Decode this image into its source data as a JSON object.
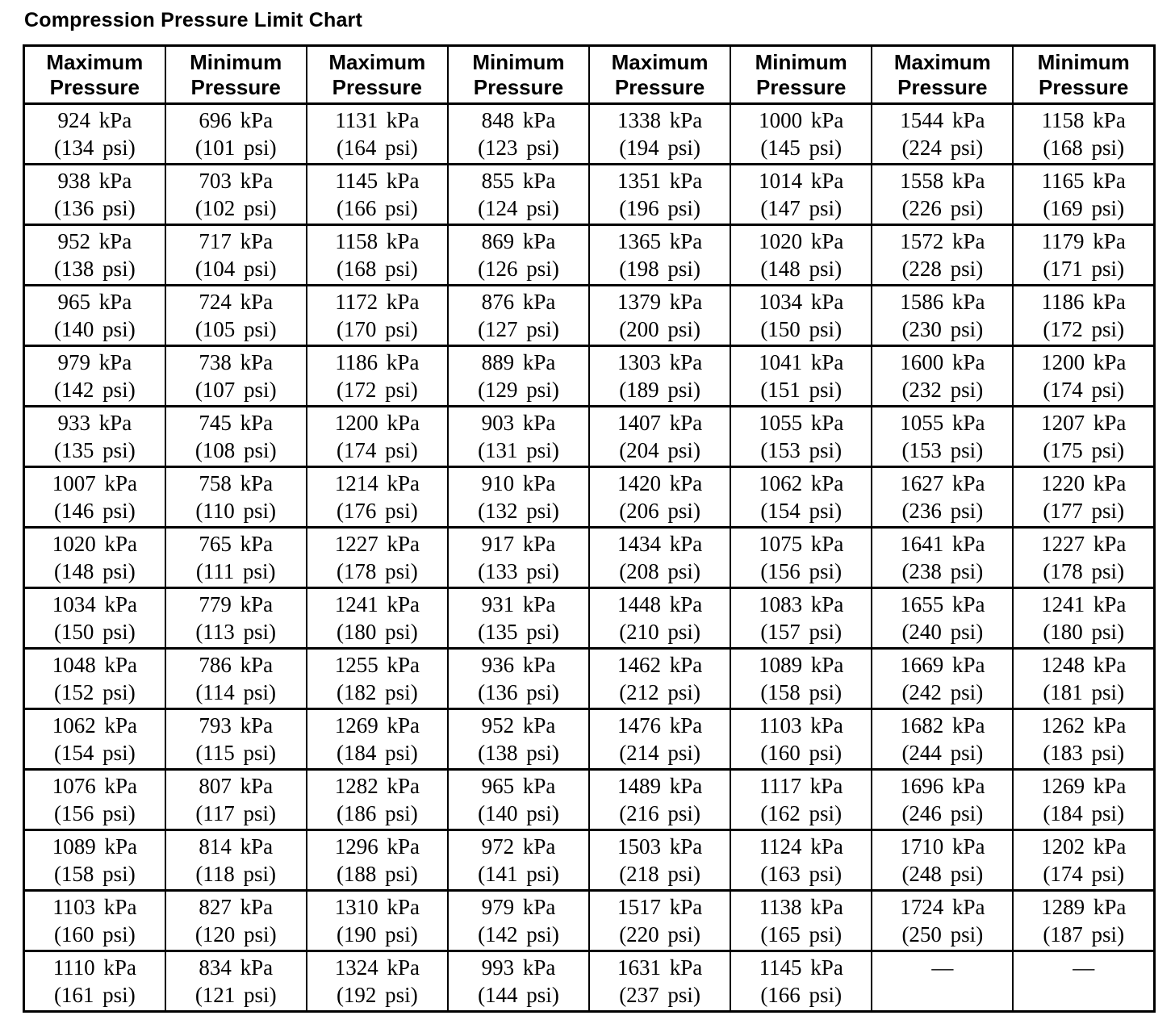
{
  "title": "Compression Pressure Limit Chart",
  "colors": {
    "background": "#ffffff",
    "text": "#000000",
    "border": "#000000"
  },
  "table": {
    "headers": [
      "Maximum Pressure",
      "Minimum Pressure",
      "Maximum Pressure",
      "Minimum Pressure",
      "Maximum Pressure",
      "Minimum Pressure",
      "Maximum Pressure",
      "Minimum Pressure"
    ],
    "rows": [
      [
        [
          "924 kPa",
          "(134 psi)"
        ],
        [
          "696 kPa",
          "(101 psi)"
        ],
        [
          "1131 kPa",
          "(164 psi)"
        ],
        [
          "848 kPa",
          "(123 psi)"
        ],
        [
          "1338 kPa",
          "(194 psi)"
        ],
        [
          "1000 kPa",
          "(145 psi)"
        ],
        [
          "1544 kPa",
          "(224 psi)"
        ],
        [
          "1158 kPa",
          "(168 psi)"
        ]
      ],
      [
        [
          "938 kPa",
          "(136 psi)"
        ],
        [
          "703 kPa",
          "(102 psi)"
        ],
        [
          "1145 kPa",
          "(166 psi)"
        ],
        [
          "855 kPa",
          "(124 psi)"
        ],
        [
          "1351 kPa",
          "(196 psi)"
        ],
        [
          "1014 kPa",
          "(147 psi)"
        ],
        [
          "1558 kPa",
          "(226 psi)"
        ],
        [
          "1165 kPa",
          "(169 psi)"
        ]
      ],
      [
        [
          "952 kPa",
          "(138 psi)"
        ],
        [
          "717 kPa",
          "(104 psi)"
        ],
        [
          "1158 kPa",
          "(168 psi)"
        ],
        [
          "869 kPa",
          "(126 psi)"
        ],
        [
          "1365 kPa",
          "(198 psi)"
        ],
        [
          "1020 kPa",
          "(148 psi)"
        ],
        [
          "1572 kPa",
          "(228 psi)"
        ],
        [
          "1179 kPa",
          "(171 psi)"
        ]
      ],
      [
        [
          "965 kPa",
          "(140 psi)"
        ],
        [
          "724 kPa",
          "(105 psi)"
        ],
        [
          "1172 kPa",
          "(170 psi)"
        ],
        [
          "876 kPa",
          "(127 psi)"
        ],
        [
          "1379 kPa",
          "(200 psi)"
        ],
        [
          "1034 kPa",
          "(150 psi)"
        ],
        [
          "1586 kPa",
          "(230 psi)"
        ],
        [
          "1186 kPa",
          "(172 psi)"
        ]
      ],
      [
        [
          "979 kPa",
          "(142 psi)"
        ],
        [
          "738 kPa",
          "(107 psi)"
        ],
        [
          "1186 kPa",
          "(172 psi)"
        ],
        [
          "889 kPa",
          "(129 psi)"
        ],
        [
          "1303 kPa",
          "(189 psi)"
        ],
        [
          "1041 kPa",
          "(151 psi)"
        ],
        [
          "1600 kPa",
          "(232 psi)"
        ],
        [
          "1200 kPa",
          "(174 psi)"
        ]
      ],
      [
        [
          "933 kPa",
          "(135 psi)"
        ],
        [
          "745 kPa",
          "(108 psi)"
        ],
        [
          "1200 kPa",
          "(174 psi)"
        ],
        [
          "903 kPa",
          "(131 psi)"
        ],
        [
          "1407 kPa",
          "(204 psi)"
        ],
        [
          "1055 kPa",
          "(153 psi)"
        ],
        [
          "1055 kPa",
          "(153 psi)"
        ],
        [
          "1207 kPa",
          "(175 psi)"
        ]
      ],
      [
        [
          "1007 kPa",
          "(146 psi)"
        ],
        [
          "758 kPa",
          "(110 psi)"
        ],
        [
          "1214 kPa",
          "(176 psi)"
        ],
        [
          "910 kPa",
          "(132 psi)"
        ],
        [
          "1420 kPa",
          "(206 psi)"
        ],
        [
          "1062 kPa",
          "(154 psi)"
        ],
        [
          "1627 kPa",
          "(236 psi)"
        ],
        [
          "1220 kPa",
          "(177 psi)"
        ]
      ],
      [
        [
          "1020 kPa",
          "(148 psi)"
        ],
        [
          "765 kPa",
          "(111 psi)"
        ],
        [
          "1227 kPa",
          "(178 psi)"
        ],
        [
          "917 kPa",
          "(133 psi)"
        ],
        [
          "1434 kPa",
          "(208 psi)"
        ],
        [
          "1075 kPa",
          "(156 psi)"
        ],
        [
          "1641 kPa",
          "(238 psi)"
        ],
        [
          "1227 kPa",
          "(178 psi)"
        ]
      ],
      [
        [
          "1034 kPa",
          "(150 psi)"
        ],
        [
          "779 kPa",
          "(113 psi)"
        ],
        [
          "1241 kPa",
          "(180 psi)"
        ],
        [
          "931 kPa",
          "(135 psi)"
        ],
        [
          "1448 kPa",
          "(210 psi)"
        ],
        [
          "1083 kPa",
          "(157 psi)"
        ],
        [
          "1655 kPa",
          "(240 psi)"
        ],
        [
          "1241 kPa",
          "(180 psi)"
        ]
      ],
      [
        [
          "1048 kPa",
          "(152 psi)"
        ],
        [
          "786 kPa",
          "(114 psi)"
        ],
        [
          "1255 kPa",
          "(182 psi)"
        ],
        [
          "936 kPa",
          "(136 psi)"
        ],
        [
          "1462 kPa",
          "(212 psi)"
        ],
        [
          "1089 kPa",
          "(158 psi)"
        ],
        [
          "1669 kPa",
          "(242 psi)"
        ],
        [
          "1248 kPa",
          "(181 psi)"
        ]
      ],
      [
        [
          "1062 kPa",
          "(154 psi)"
        ],
        [
          "793 kPa",
          "(115 psi)"
        ],
        [
          "1269 kPa",
          "(184 psi)"
        ],
        [
          "952 kPa",
          "(138 psi)"
        ],
        [
          "1476 kPa",
          "(214 psi)"
        ],
        [
          "1103 kPa",
          "(160 psi)"
        ],
        [
          "1682 kPa",
          "(244 psi)"
        ],
        [
          "1262 kPa",
          "(183 psi)"
        ]
      ],
      [
        [
          "1076 kPa",
          "(156 psi)"
        ],
        [
          "807 kPa",
          "(117 psi)"
        ],
        [
          "1282 kPa",
          "(186 psi)"
        ],
        [
          "965 kPa",
          "(140 psi)"
        ],
        [
          "1489 kPa",
          "(216 psi)"
        ],
        [
          "1117 kPa",
          "(162 psi)"
        ],
        [
          "1696 kPa",
          "(246 psi)"
        ],
        [
          "1269 kPa",
          "(184 psi)"
        ]
      ],
      [
        [
          "1089 kPa",
          "(158 psi)"
        ],
        [
          "814 kPa",
          "(118 psi)"
        ],
        [
          "1296 kPa",
          "(188 psi)"
        ],
        [
          "972 kPa",
          "(141 psi)"
        ],
        [
          "1503 kPa",
          "(218 psi)"
        ],
        [
          "1124 kPa",
          "(163 psi)"
        ],
        [
          "1710 kPa",
          "(248 psi)"
        ],
        [
          "1202 kPa",
          "(174 psi)"
        ]
      ],
      [
        [
          "1103 kPa",
          "(160 psi)"
        ],
        [
          "827 kPa",
          "(120 psi)"
        ],
        [
          "1310 kPa",
          "(190 psi)"
        ],
        [
          "979 kPa",
          "(142 psi)"
        ],
        [
          "1517 kPa",
          "(220 psi)"
        ],
        [
          "1138 kPa",
          "(165 psi)"
        ],
        [
          "1724 kPa",
          "(250 psi)"
        ],
        [
          "1289 kPa",
          "(187 psi)"
        ]
      ],
      [
        [
          "1110 kPa",
          "(161 psi)"
        ],
        [
          "834 kPa",
          "(121 psi)"
        ],
        [
          "1324 kPa",
          "(192 psi)"
        ],
        [
          "993 kPa",
          "(144 psi)"
        ],
        [
          "1631 kPa",
          "(237 psi)"
        ],
        [
          "1145 kPa",
          "(166 psi)"
        ],
        [
          "—"
        ],
        [
          "—"
        ]
      ]
    ]
  }
}
